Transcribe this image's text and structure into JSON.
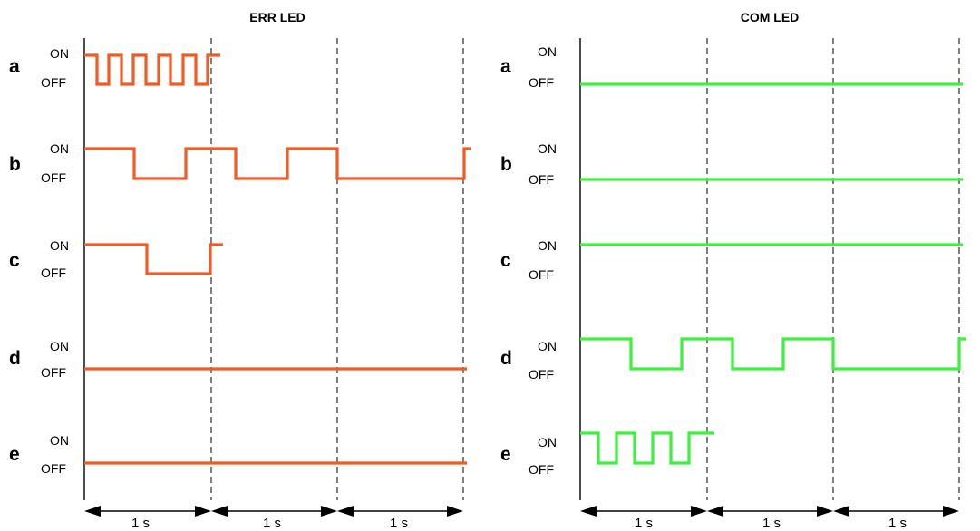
{
  "colors": {
    "err": "#f05a23",
    "com": "#3df03d"
  },
  "panels": [
    {
      "id": "err",
      "title": "ERR LED",
      "color_key": "err",
      "duration_labels": [
        "1 s",
        "1 s",
        "1 s"
      ],
      "rows": [
        {
          "letter": "a",
          "on_label": "ON",
          "off_label": "OFF",
          "pattern": "flicker",
          "period_s": 0.2
        },
        {
          "letter": "b",
          "on_label": "ON",
          "off_label": "OFF",
          "pattern": "blinking",
          "period_s": 0.8
        },
        {
          "letter": "c",
          "on_label": "ON",
          "off_label": "OFF",
          "pattern": "single-flash",
          "period_s": 1
        },
        {
          "letter": "d",
          "on_label": "ON",
          "off_label": "OFF",
          "pattern": "off"
        },
        {
          "letter": "e",
          "on_label": "ON",
          "off_label": "OFF",
          "pattern": "off"
        }
      ]
    },
    {
      "id": "com",
      "title": "COM LED",
      "color_key": "com",
      "duration_labels": [
        "1 s",
        "1 s",
        "1 s"
      ],
      "rows": [
        {
          "letter": "a",
          "on_label": "ON",
          "off_label": "OFF",
          "pattern": "off"
        },
        {
          "letter": "b",
          "on_label": "ON",
          "off_label": "OFF",
          "pattern": "off"
        },
        {
          "letter": "c",
          "on_label": "ON",
          "off_label": "OFF",
          "pattern": "on"
        },
        {
          "letter": "d",
          "on_label": "ON",
          "off_label": "OFF",
          "pattern": "blinking",
          "period_s": 0.8
        },
        {
          "letter": "e",
          "on_label": "ON",
          "off_label": "OFF",
          "pattern": "flicker",
          "period_s": 0.29
        }
      ]
    }
  ]
}
